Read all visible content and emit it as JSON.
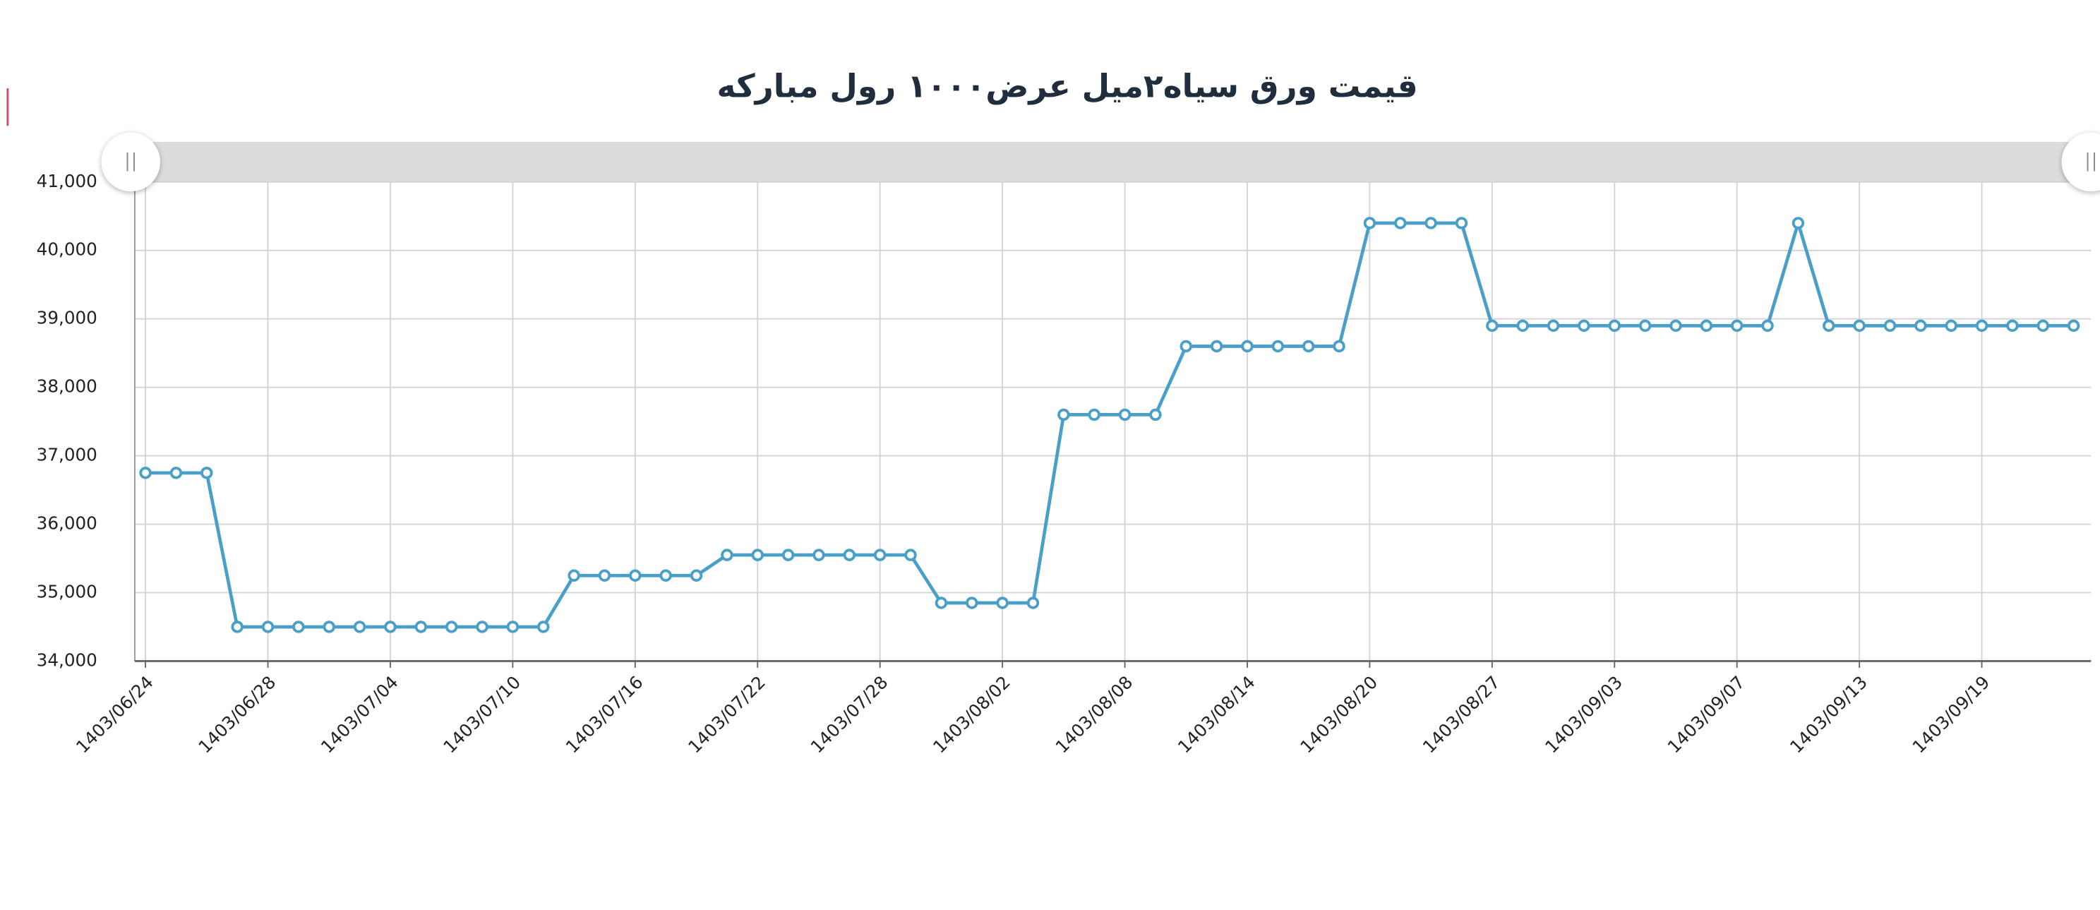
{
  "chart_data": {
    "type": "line",
    "title": "قیمت ورق سیاه۲میل عرض۱۰۰۰ رول مبارکه",
    "categories": [
      "1403/06/24",
      null,
      null,
      null,
      "1403/06/28",
      null,
      null,
      null,
      "1403/07/04",
      null,
      null,
      null,
      "1403/07/10",
      null,
      null,
      null,
      "1403/07/16",
      null,
      null,
      null,
      "1403/07/22",
      null,
      null,
      null,
      "1403/07/28",
      null,
      null,
      null,
      "1403/08/02",
      null,
      null,
      null,
      "1403/08/08",
      null,
      null,
      null,
      "1403/08/14",
      null,
      null,
      null,
      "1403/08/20",
      null,
      null,
      null,
      "1403/08/27",
      null,
      null,
      null,
      "1403/09/03",
      null,
      null,
      null,
      "1403/09/07",
      null,
      null,
      null,
      "1403/09/13",
      null,
      null,
      null,
      "1403/09/19",
      null,
      null,
      null
    ],
    "series": [
      {
        "color": "#4a9fc9",
        "values": [
          36750,
          36750,
          36750,
          34500,
          34500,
          34500,
          34500,
          34500,
          34500,
          34500,
          34500,
          34500,
          34500,
          34500,
          35250,
          35250,
          35250,
          35250,
          35250,
          35550,
          35550,
          35550,
          35550,
          35550,
          35550,
          35550,
          34850,
          34850,
          34850,
          34850,
          37600,
          37600,
          37600,
          37600,
          38600,
          38600,
          38600,
          38600,
          38600,
          38600,
          40400,
          40400,
          40400,
          40400,
          38900,
          38900,
          38900,
          38900,
          38900,
          38900,
          38900,
          38900,
          38900,
          38900,
          40400,
          38900,
          38900,
          38900,
          38900,
          38900,
          38900,
          38900,
          38900,
          38900
        ]
      }
    ],
    "ylim": [
      34000,
      41000
    ],
    "yticks": [
      {
        "value": 34000,
        "label": "34,000"
      },
      {
        "value": 35000,
        "label": "35,000"
      },
      {
        "value": 36000,
        "label": "36,000"
      },
      {
        "value": 37000,
        "label": "37,000"
      },
      {
        "value": 38000,
        "label": "38,000"
      },
      {
        "value": 39000,
        "label": "39,000"
      },
      {
        "value": 40000,
        "label": "40,000"
      },
      {
        "value": 41000,
        "label": "41,000"
      }
    ],
    "grid": true
  }
}
